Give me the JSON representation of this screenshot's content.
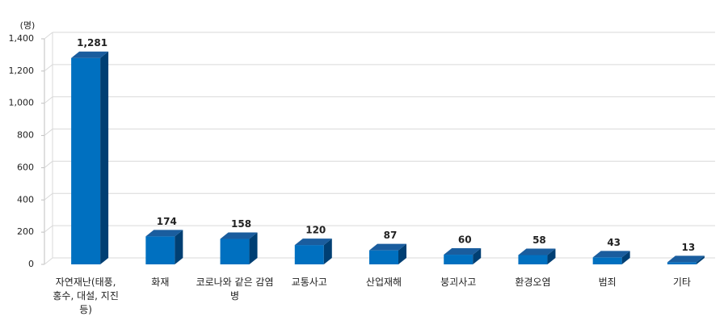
{
  "chart_data": {
    "type": "bar3d",
    "unit_label": "(명)",
    "categories": [
      "자연재난(태풍, 홍수, 대설, 지진 등)",
      "화재",
      "코로나와 같은 감염병",
      "교통사고",
      "산업재해",
      "붕괴사고",
      "환경오염",
      "범죄",
      "기타"
    ],
    "values": [
      1281,
      174,
      158,
      120,
      87,
      60,
      58,
      43,
      13
    ],
    "value_labels": [
      "1,281",
      "174",
      "158",
      "120",
      "87",
      "60",
      "58",
      "43",
      "13"
    ],
    "color": "#0070c0",
    "ylim": [
      0,
      1400
    ],
    "yticks": [
      0,
      200,
      400,
      600,
      800,
      {
        "value": 1000,
        "label": "1,000"
      },
      {
        "value": 1200,
        "label": "1,200"
      },
      {
        "value": 1400,
        "label": "1,400"
      }
    ],
    "grid": true
  }
}
